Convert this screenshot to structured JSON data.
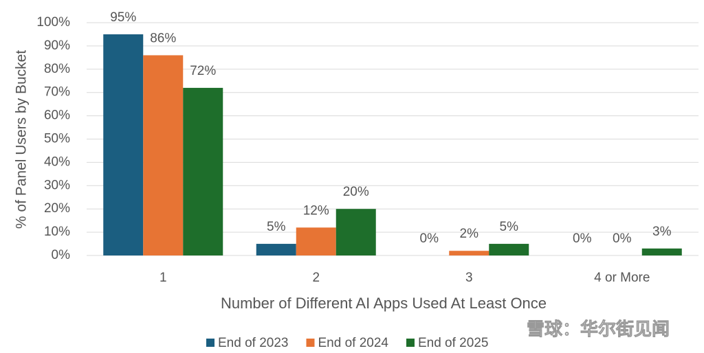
{
  "chart_data": {
    "type": "bar",
    "y_label": "% of Panel Users by Bucket",
    "x_label": "Number of Different AI Apps Used At Least Once",
    "categories": [
      "1",
      "2",
      "3",
      "4 or More"
    ],
    "series": [
      {
        "name": "End of 2023",
        "color": "#1b5e80",
        "values": [
          95,
          5,
          0,
          0
        ],
        "value_labels": [
          "95%",
          "5%",
          "0%",
          "0%"
        ]
      },
      {
        "name": "End of 2024",
        "color": "#e77434",
        "values": [
          86,
          12,
          2,
          0
        ],
        "value_labels": [
          "86%",
          "12%",
          "2%",
          "0%"
        ]
      },
      {
        "name": "End of 2025",
        "color": "#1e6e2b",
        "values": [
          72,
          20,
          5,
          3
        ],
        "value_labels": [
          "72%",
          "20%",
          "5%",
          "3%"
        ]
      }
    ],
    "ylim": [
      0,
      100
    ],
    "yticks": [
      {
        "value": 0,
        "label": "0%"
      },
      {
        "value": 10,
        "label": "10%"
      },
      {
        "value": 20,
        "label": "20%"
      },
      {
        "value": 30,
        "label": "30%"
      },
      {
        "value": 40,
        "label": "40%"
      },
      {
        "value": 50,
        "label": "50%"
      },
      {
        "value": 60,
        "label": "60%"
      },
      {
        "value": 70,
        "label": "70%"
      },
      {
        "value": 80,
        "label": "80%"
      },
      {
        "value": 90,
        "label": "90%"
      },
      {
        "value": 100,
        "label": "100%"
      }
    ],
    "grid": true,
    "legend": "bottom",
    "watermark": "雪球：华尔街见闻"
  }
}
